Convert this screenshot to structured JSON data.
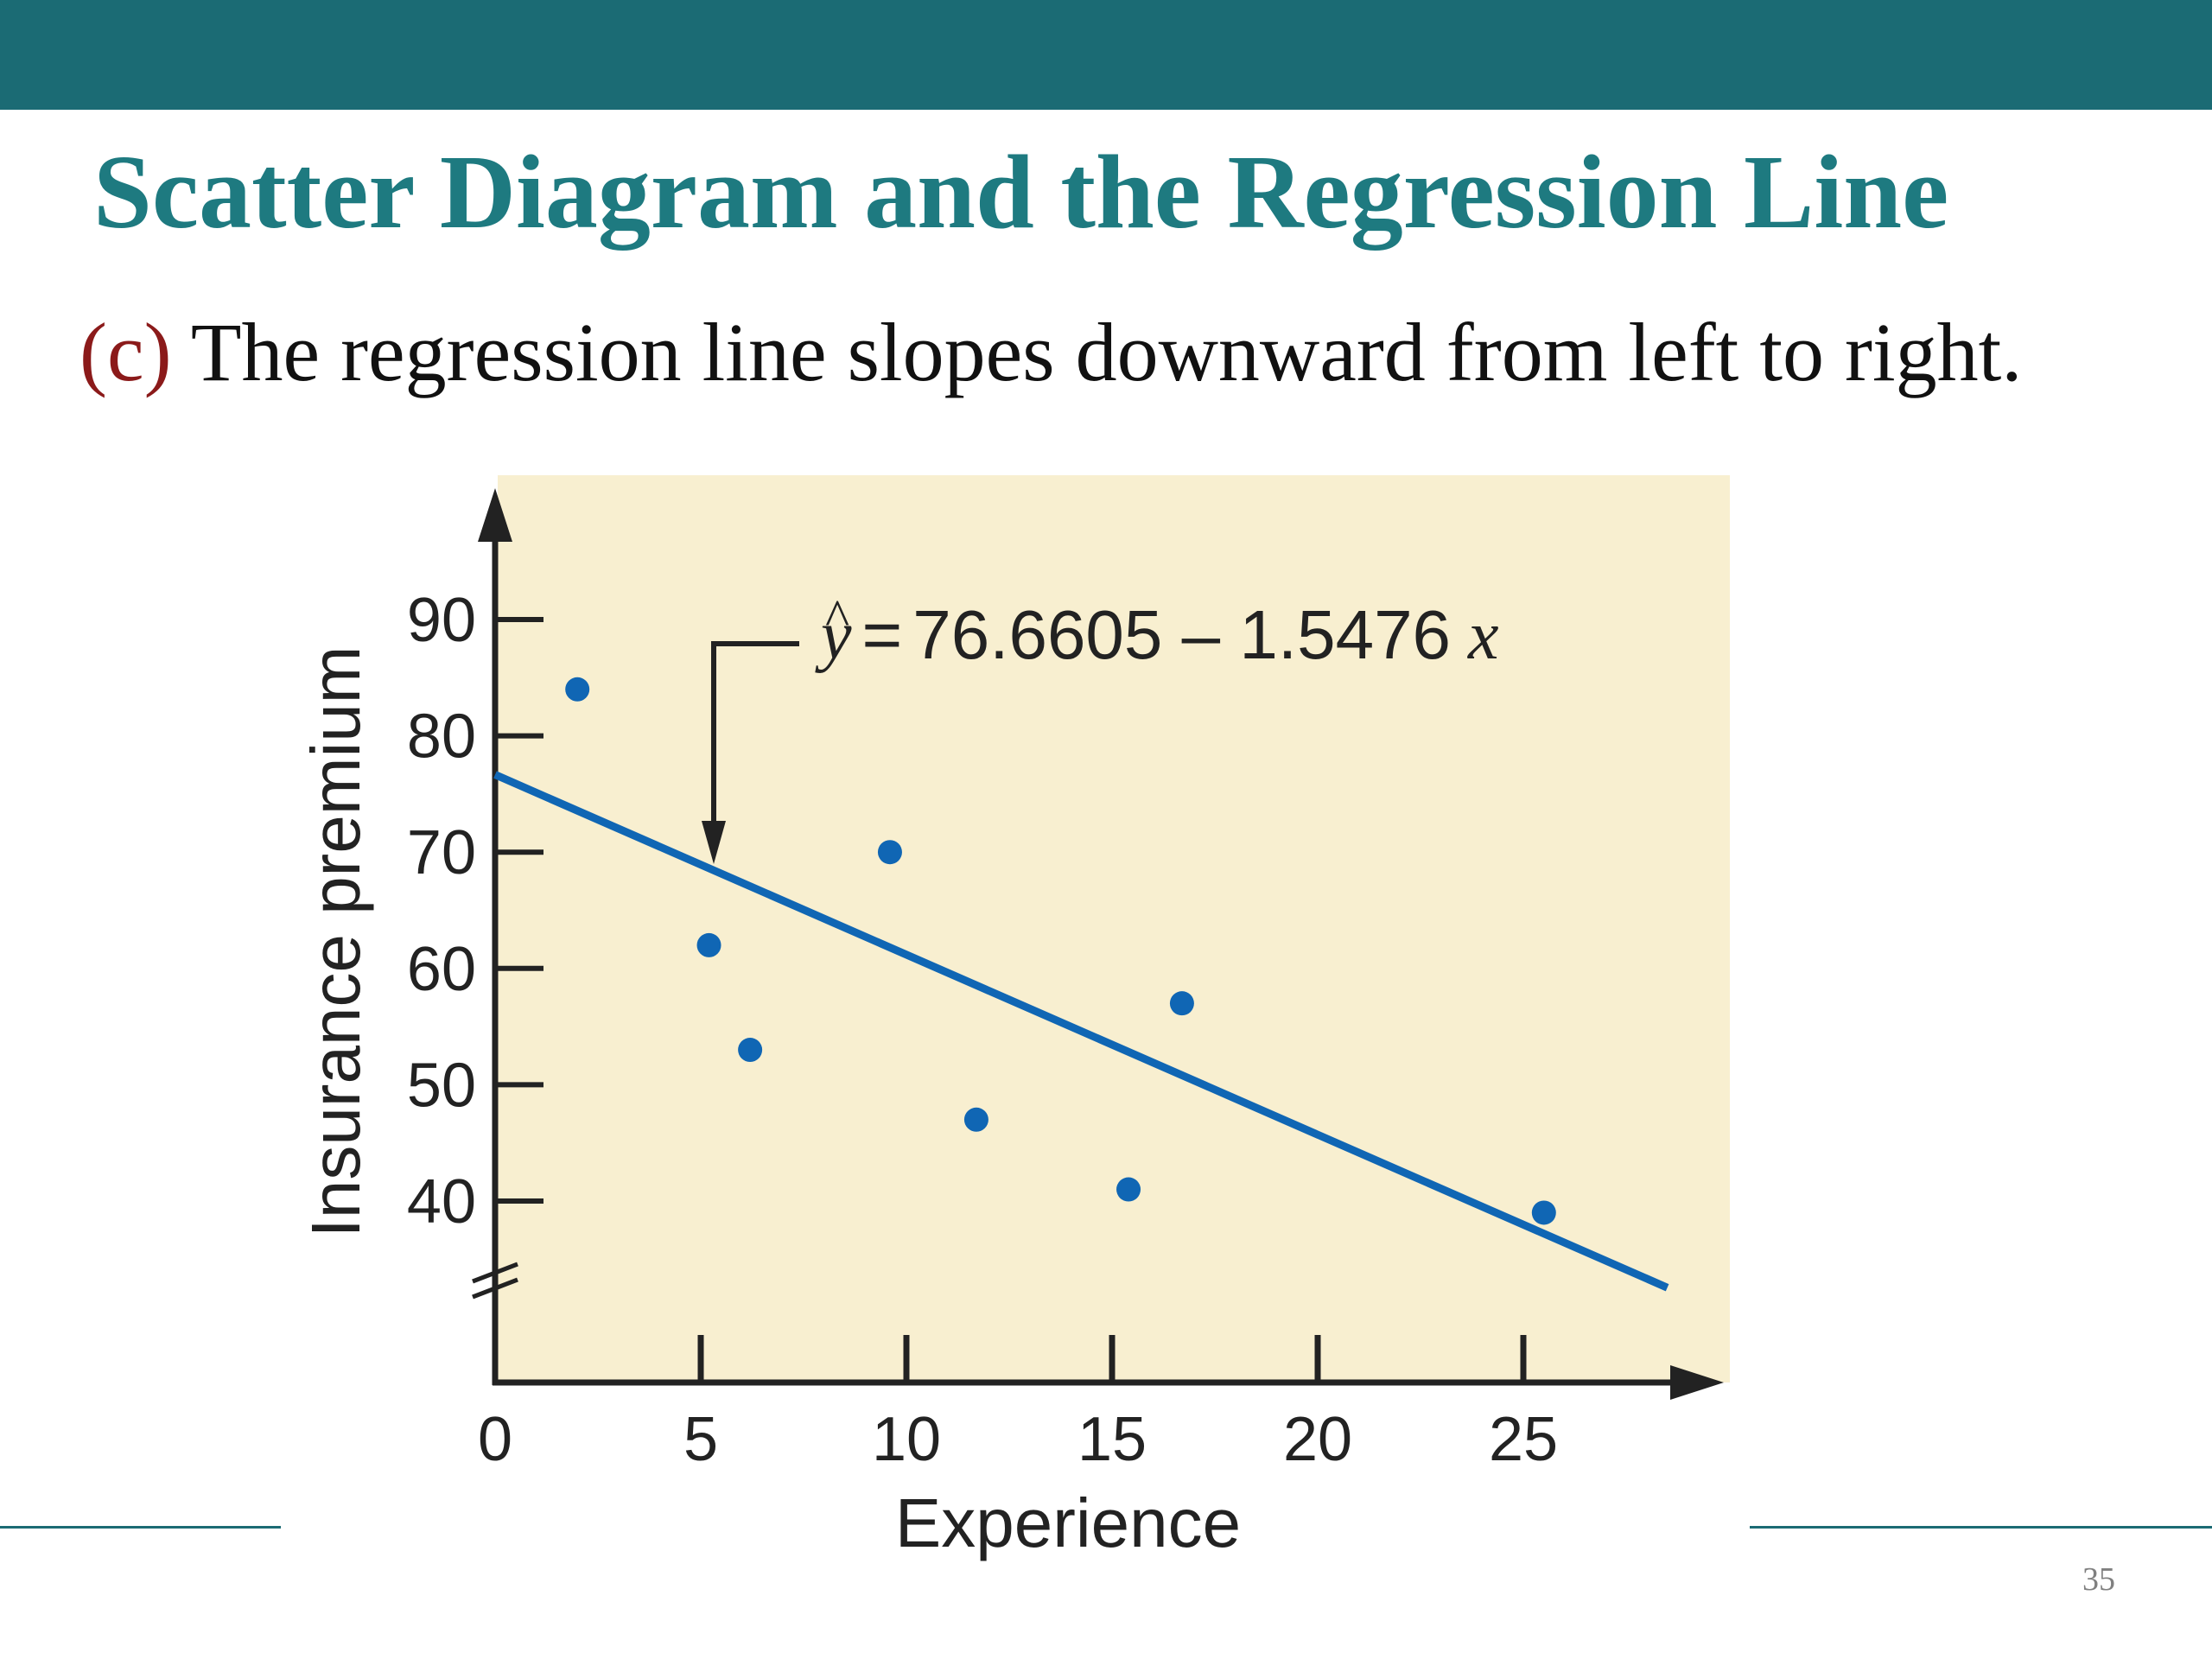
{
  "slide": {
    "title": "Scatter Diagram and the Regression Line",
    "subtitle_marker": "(c)",
    "subtitle_text": " The regression line slopes downward from left to right.",
    "page_number": "35"
  },
  "colors": {
    "header_bar": "#1b6b74",
    "title": "#1e7a80",
    "marker": "#8b1a1a",
    "plot_background": "#f8efd0",
    "series": "#1066b4"
  },
  "chart_data": {
    "type": "scatter",
    "xlabel": "Experience",
    "ylabel": "Insurance premium",
    "xlim": [
      0,
      30
    ],
    "ylim": [
      30,
      95
    ],
    "x_ticks": [
      0,
      5,
      10,
      15,
      20,
      25
    ],
    "y_ticks": [
      40,
      50,
      60,
      70,
      80,
      90
    ],
    "x_tick_labels": [
      "0",
      "5",
      "10",
      "15",
      "20",
      "25"
    ],
    "y_tick_labels": [
      "40",
      "50",
      "60",
      "70",
      "80",
      "90"
    ],
    "grid": false,
    "axis_break_on_y": true,
    "series": [
      {
        "points": [
          {
            "x": 2,
            "y": 84
          },
          {
            "x": 5.2,
            "y": 62
          },
          {
            "x": 6.2,
            "y": 53
          },
          {
            "x": 9.6,
            "y": 70
          },
          {
            "x": 11.7,
            "y": 47
          },
          {
            "x": 15.4,
            "y": 41
          },
          {
            "x": 16.7,
            "y": 57
          },
          {
            "x": 25.5,
            "y": 39
          }
        ]
      }
    ],
    "regression_line": {
      "intercept": 76.6605,
      "slope": -1.5476,
      "x_range": [
        0,
        28.5
      ]
    },
    "annotation": {
      "lhs": "y",
      "hat": "^",
      "equals": "=",
      "expression": "76.6605 – 1.5476",
      "variable": "x"
    }
  }
}
